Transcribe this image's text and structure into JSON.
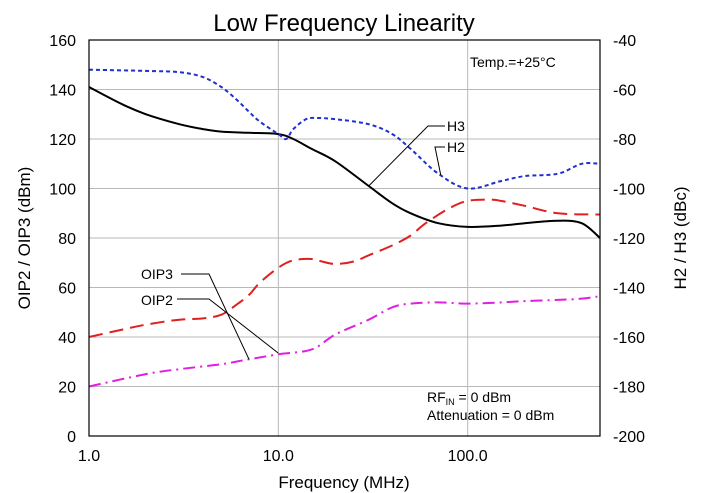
{
  "chart_data": {
    "type": "line",
    "title": "Low Frequency Linearity",
    "xlabel": "Frequency (MHz)",
    "ylabel_left": "OIP2 / OIP3 (dBm)",
    "ylabel_right": "H2 / H3 (dBc)",
    "x_scale": "log",
    "xlim": [
      1,
      500
    ],
    "ylim_left": [
      0,
      160
    ],
    "ylim_right": [
      -200,
      -40
    ],
    "x_ticks": [
      1,
      10,
      100
    ],
    "x_tick_labels": [
      "1.0",
      "10.0",
      "100.0"
    ],
    "y_ticks_left": [
      0,
      20,
      40,
      60,
      80,
      100,
      120,
      140,
      160
    ],
    "y_tick_labels_left": [
      "0",
      "20",
      "40",
      "60",
      "80",
      "100",
      "120",
      "140",
      "160"
    ],
    "y_ticks_right": [
      -200,
      -180,
      -160,
      -140,
      -120,
      -100,
      -80,
      -60,
      -40
    ],
    "y_tick_labels_right": [
      "-200",
      "-180",
      "-160",
      "-140",
      "-120",
      "-100",
      "-80",
      "-60",
      "-40"
    ],
    "grid": true,
    "annotations": {
      "temp": "Temp.=+25°C",
      "rf_main": "RF",
      "rf_sub": "IN",
      "rf_rest": " = 0 dBm",
      "attenuation": "Attenuation = 0 dBm"
    },
    "series": [
      {
        "name": "H3",
        "axis": "right",
        "color": "#000000",
        "style": "solid",
        "x": [
          1,
          1.5,
          2,
          3,
          4,
          5,
          7,
          10,
          12,
          15,
          20,
          30,
          40,
          50,
          70,
          100,
          150,
          200,
          300,
          400,
          500
        ],
        "y": [
          -59,
          -66,
          -70,
          -74,
          -76,
          -77,
          -77.5,
          -78,
          -80,
          -84,
          -89,
          -99,
          -106,
          -110,
          -114,
          -115.5,
          -115,
          -114,
          -113,
          -114,
          -120
        ]
      },
      {
        "name": "H2",
        "axis": "right",
        "color": "#1f2fd0",
        "style": "dashed",
        "x": [
          1,
          2,
          3,
          4,
          5,
          6,
          7,
          8,
          10,
          11,
          12,
          14,
          16,
          20,
          30,
          40,
          50,
          70,
          100,
          150,
          200,
          300,
          400,
          500
        ],
        "y": [
          -52,
          -52.5,
          -53,
          -55,
          -59,
          -64,
          -69,
          -73,
          -78,
          -80,
          -76,
          -72,
          -71.5,
          -72,
          -74,
          -78,
          -84,
          -94,
          -100,
          -97,
          -95,
          -94,
          -90,
          -90
        ]
      },
      {
        "name": "OIP2",
        "axis": "left",
        "color": "#e02020",
        "style": "longdash",
        "x": [
          1,
          1.5,
          2,
          3,
          4,
          5,
          6,
          7,
          8,
          10,
          12,
          15,
          17,
          20,
          25,
          30,
          40,
          50,
          60,
          80,
          100,
          130,
          150,
          200,
          300,
          500
        ],
        "y": [
          40,
          43,
          45,
          47,
          47.5,
          49,
          53,
          57,
          62,
          68,
          71,
          71.5,
          70.5,
          69.5,
          70.5,
          73,
          77,
          81,
          86,
          92,
          95,
          95.5,
          95,
          93,
          90,
          89.5
        ]
      },
      {
        "name": "OIP3",
        "axis": "left",
        "color": "#e020e0",
        "style": "dashdot",
        "x": [
          1,
          2,
          3,
          5,
          7,
          10,
          15,
          20,
          30,
          40,
          50,
          70,
          100,
          150,
          200,
          300,
          400,
          500
        ],
        "y": [
          20,
          25,
          27,
          29,
          31,
          33,
          35,
          41,
          47,
          52,
          53.5,
          54,
          53.5,
          54,
          54.5,
          55,
          55.5,
          56.5
        ]
      }
    ],
    "labels": [
      {
        "text": "H3",
        "color": "#000000"
      },
      {
        "text": "H2",
        "color": "#1f2fd0"
      },
      {
        "text": "OIP3",
        "color": "#e020e0"
      },
      {
        "text": "OIP2",
        "color": "#e02020"
      }
    ]
  }
}
